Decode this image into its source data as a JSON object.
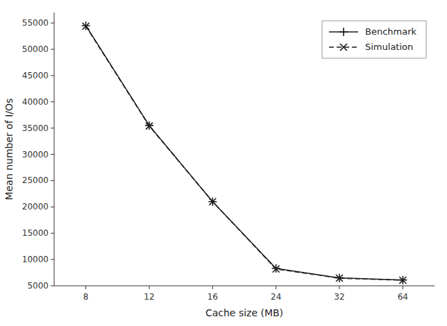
{
  "chart_data": {
    "type": "line",
    "xlabel": "Cache size (MB)",
    "ylabel": "Mean number of I/Os",
    "categories": [
      "8",
      "12",
      "16",
      "24",
      "32",
      "64"
    ],
    "series": [
      {
        "name": "Benchmark",
        "color": "#1a1a1a",
        "marker": "plus",
        "line_style": "solid",
        "values": [
          54500,
          35500,
          21000,
          8300,
          6500,
          6100
        ]
      },
      {
        "name": "Simulation",
        "color": "#1a1a1a",
        "marker": "x",
        "line_style": "dashed",
        "values": [
          54400,
          35400,
          21000,
          8200,
          6450,
          6050
        ]
      }
    ],
    "ylim": [
      5000,
      57000
    ],
    "yticks": [
      5000,
      10000,
      15000,
      20000,
      25000,
      30000,
      35000,
      40000,
      45000,
      50000,
      55000
    ],
    "grid": false,
    "legend": "upper right"
  }
}
